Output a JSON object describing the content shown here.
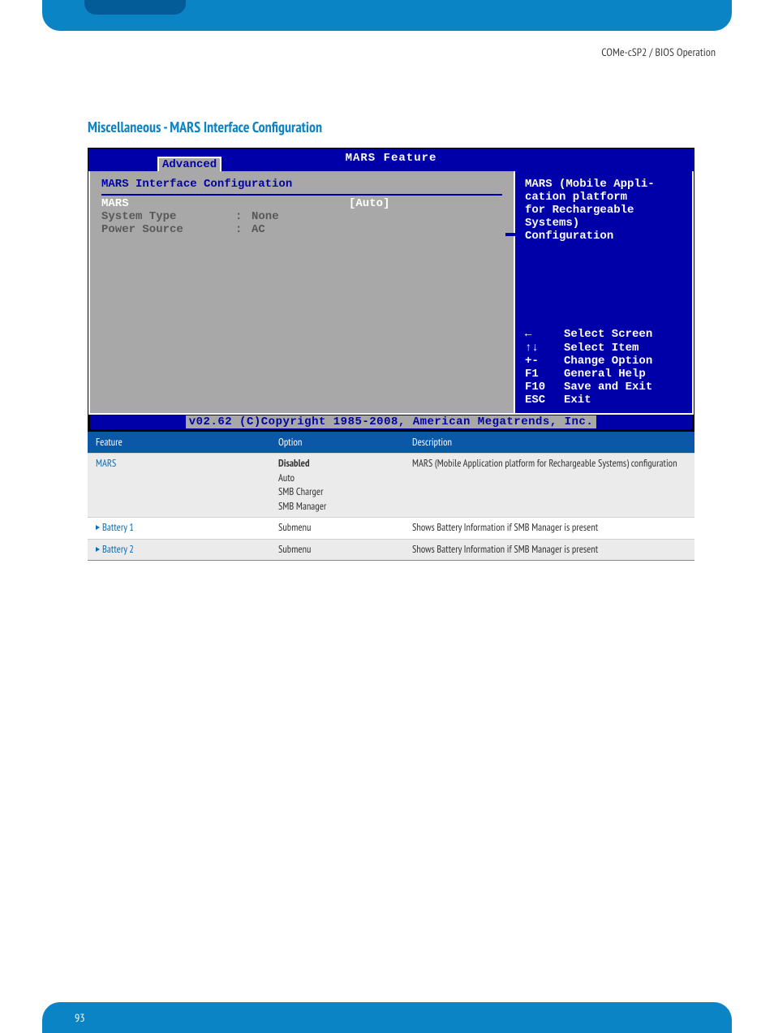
{
  "header": {
    "breadcrumb": "COMe-cSP2 / BIOS Operation"
  },
  "section": {
    "title": "Miscellaneous - MARS Interface Configuration"
  },
  "bios": {
    "window_title": "MARS Feature",
    "tab": "Advanced",
    "config_title": "MARS Interface Configuration",
    "fields": [
      {
        "label": "MARS",
        "value": "[Auto]",
        "selected": true
      },
      {
        "label": "System Type",
        "value": "None",
        "selected": false
      },
      {
        "label": "Power Source",
        "value": "AC",
        "selected": false
      }
    ],
    "help_text_lines": [
      "MARS (Mobile Appli-",
      "cation platform",
      "for Rechargeable",
      "Systems)",
      "Configuration"
    ],
    "help_keys": [
      {
        "key": "←",
        "desc": "Select Screen"
      },
      {
        "key": "↑↓",
        "desc": "Select Item"
      },
      {
        "key": "+-",
        "desc": "Change Option"
      },
      {
        "key": "F1",
        "desc": "General Help"
      },
      {
        "key": "F10",
        "desc": "Save and Exit"
      },
      {
        "key": "ESC",
        "desc": "Exit"
      }
    ],
    "footer": "v02.62 (C)Copyright 1985-2008, American Megatrends, Inc.",
    "colors": {
      "bios_blue": "#0000a8",
      "bios_gray": "#a8a8a8",
      "bios_white": "#ffffff",
      "dim_text": "#585858"
    }
  },
  "table": {
    "headers": {
      "feature": "Feature",
      "option": "Option",
      "description": "Description"
    },
    "rows": [
      {
        "feature_text": "MARS",
        "is_link": true,
        "has_triangle": false,
        "option_primary": "Disabled",
        "option_secondary": [
          "Auto",
          "SMB Charger",
          "SMB Manager"
        ],
        "description": "MARS (Mobile Application platform for Rechargeable Systems) configuration"
      },
      {
        "feature_text": "Battery 1",
        "is_link": true,
        "has_triangle": true,
        "option_primary": "Submenu",
        "option_secondary": [],
        "description": "Shows Battery Information if SMB Manager is present"
      },
      {
        "feature_text": "Battery 2",
        "is_link": true,
        "has_triangle": true,
        "option_primary": "Submenu",
        "option_secondary": [],
        "description": "Shows Battery Information if SMB Manager is present"
      }
    ]
  },
  "page_number": "93",
  "theme": {
    "brand_blue": "#0b84c5",
    "dark_blue": "#035c98",
    "table_header_bg": "#0b57a8",
    "link_color": "#0b6db5"
  }
}
